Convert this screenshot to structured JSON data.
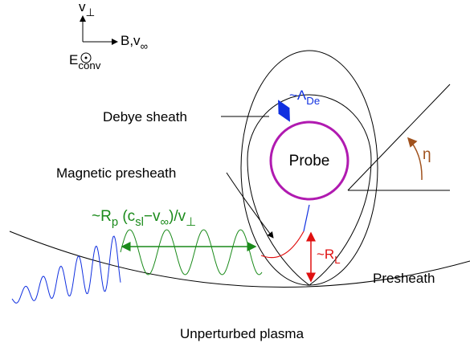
{
  "axes": {
    "v_perp": [
      [
        "v",
        "⊥"
      ]
    ],
    "b_field": [
      [
        "B,v",
        "∞"
      ]
    ],
    "e_field": [
      [
        "E",
        "conv"
      ]
    ]
  },
  "labels": {
    "debye_length": [
      [
        "~Λ",
        "De"
      ]
    ],
    "debye_sheath": "Debye sheath",
    "probe": "Probe",
    "magnetic_presheath": "Magnetic presheath",
    "angle": "η",
    "rotation_length": [
      [
        "~R",
        "p"
      ],
      [
        " (c",
        "sl"
      ],
      [
        "−v",
        "∞"
      ],
      [
        ")/v",
        "⊥"
      ]
    ],
    "larmor_radius": [
      [
        "~R",
        "L"
      ]
    ],
    "presheath": "Presheath",
    "unperturbed": "Unperturbed plasma"
  }
}
